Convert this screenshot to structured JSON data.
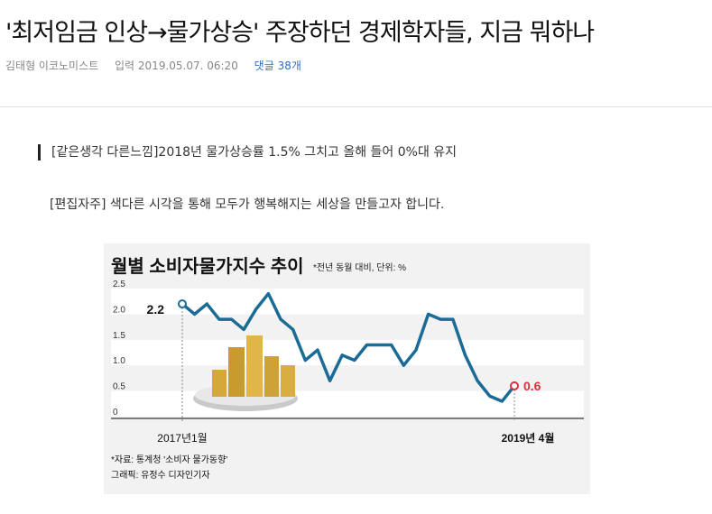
{
  "article": {
    "title": "'최저임금 인상→물가상승' 주장하던 경제학자들, 지금 뭐하나",
    "author": "김태형 이코노미스트",
    "date": "입력 2019.05.07. 06:20",
    "comments": "댓글 38개",
    "subtitle": "[같은생각 다른느낌]2018년 물가상승률 1.5% 그치고 올해 들어 0%대 유지",
    "editor_note": "[편집자주] 색다른 시각을 통해 모두가 행복해지는 세상을 만들고자 합니다."
  },
  "chart_data": {
    "type": "line",
    "title": "월별 소비자물가지수 추이",
    "subtitle": "*전년 동월 대비, 단위: %",
    "x_start_label": "2017년1월",
    "x_end_label": "2019년 4월",
    "y_ticks": [
      "0",
      "0.5",
      "1.0",
      "1.5",
      "2.0",
      "2.5"
    ],
    "ylim": [
      0,
      2.5
    ],
    "values": [
      2.2,
      2.0,
      2.2,
      1.9,
      1.9,
      1.7,
      2.1,
      2.4,
      1.9,
      1.7,
      1.1,
      1.3,
      0.7,
      1.2,
      1.1,
      1.4,
      1.4,
      1.4,
      1.0,
      1.3,
      2.0,
      1.9,
      1.9,
      1.2,
      0.7,
      0.4,
      0.3,
      0.6
    ],
    "start_value_label": "2.2",
    "end_value_label": "0.6",
    "source": "*자료: 통계청 '소비자 물가동향'",
    "credit": "그래픽: 유정수 디자인기자",
    "line_color": "#1a6b96",
    "end_color": "#e0303a"
  }
}
